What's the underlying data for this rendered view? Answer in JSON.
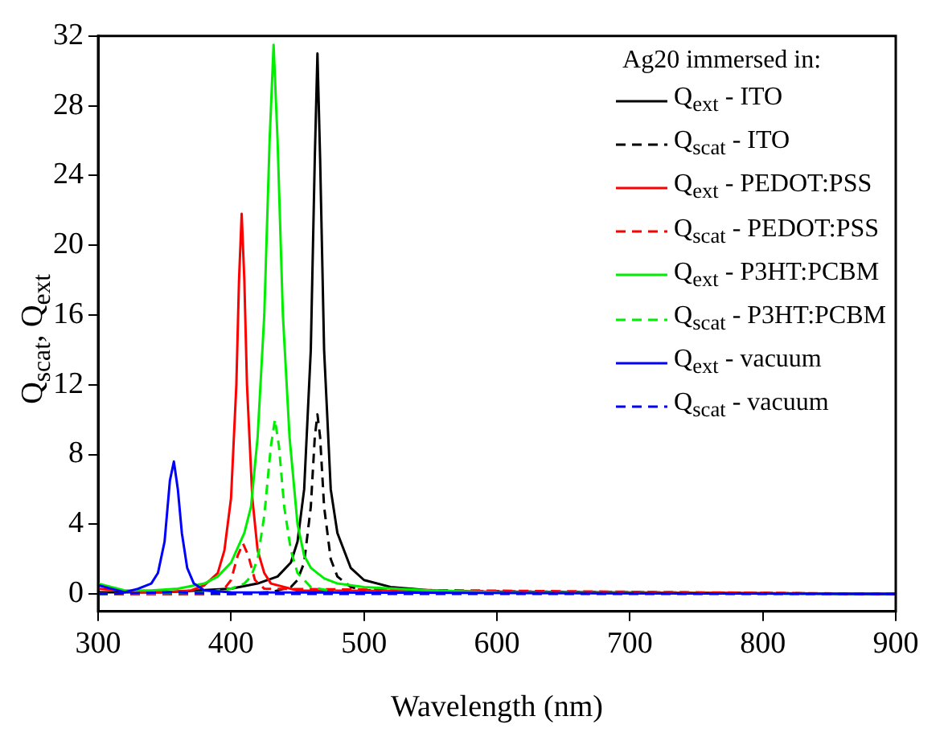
{
  "chart_data": {
    "type": "line",
    "xlabel": "Wavelength (nm)",
    "ylabel": "Q$_{scat}$, Q$_{ext}$",
    "legend_title": "Ag20 immersed in:",
    "legend": "top right",
    "grid": false,
    "marker": "none",
    "xlim": [
      300,
      900
    ],
    "xticks": [
      300,
      400,
      500,
      600,
      700,
      800,
      900
    ],
    "ylim": [
      -1,
      32
    ],
    "yticks": [
      0,
      4,
      8,
      12,
      16,
      20,
      24,
      28,
      32
    ],
    "series": [
      {
        "name": "Q$_{ext}$ - ITO",
        "color": "#000000",
        "line_style": "solid",
        "x": [
          300,
          350,
          400,
          420,
          435,
          445,
          450,
          455,
          460,
          463,
          465,
          467,
          470,
          475,
          480,
          490,
          500,
          520,
          550,
          600,
          900
        ],
        "values": [
          0.1,
          0.1,
          0.3,
          0.6,
          1.0,
          1.8,
          3,
          6,
          14,
          25,
          31,
          25,
          14,
          6,
          3.5,
          1.5,
          0.8,
          0.4,
          0.2,
          0.1,
          0
        ]
      },
      {
        "name": "Q$_{scat}$ - ITO",
        "color": "#000000",
        "line_style": "dashed",
        "x": [
          300,
          400,
          430,
          445,
          450,
          455,
          460,
          463,
          465,
          467,
          470,
          475,
          480,
          490,
          500,
          900
        ],
        "values": [
          0,
          0,
          0.1,
          0.4,
          0.8,
          1.8,
          5,
          9,
          10.3,
          9,
          5,
          2,
          1,
          0.4,
          0.2,
          0
        ]
      },
      {
        "name": "Q$_{ext}$ - PEDOT:PSS",
        "color": "#ff0000",
        "line_style": "solid",
        "x": [
          300,
          330,
          350,
          370,
          380,
          390,
          395,
          400,
          404,
          406,
          408,
          410,
          412,
          416,
          420,
          425,
          430,
          450,
          900
        ],
        "values": [
          0.3,
          0.1,
          0.1,
          0.2,
          0.5,
          1.2,
          2.5,
          5.5,
          12,
          18,
          21.8,
          18,
          12,
          5.5,
          2.5,
          1.2,
          0.6,
          0.2,
          0
        ]
      },
      {
        "name": "Q$_{scat}$ - PEDOT:PSS",
        "color": "#ff0000",
        "line_style": "dashed",
        "x": [
          300,
          380,
          395,
          400,
          405,
          409,
          413,
          418,
          425,
          900
        ],
        "values": [
          0,
          0,
          0.3,
          0.8,
          2.2,
          2.9,
          2.2,
          0.8,
          0.3,
          0
        ]
      },
      {
        "name": "Q$_{ext}$ - P3HT:PCBM",
        "color": "#00ee00",
        "line_style": "solid",
        "x": [
          300,
          320,
          340,
          360,
          380,
          390,
          400,
          410,
          415,
          420,
          425,
          429,
          432,
          435,
          439,
          444,
          450,
          455,
          460,
          470,
          480,
          500,
          550,
          600
        ],
        "values": [
          0.6,
          0.2,
          0.2,
          0.3,
          0.6,
          1.0,
          1.8,
          3.5,
          5,
          9,
          16,
          26,
          31.5,
          26,
          16,
          9,
          4,
          2.2,
          1.5,
          0.9,
          0.6,
          0.4,
          0.2,
          0.1
        ]
      },
      {
        "name": "Q$_{scat}$ - P3HT:PCBM",
        "color": "#00ee00",
        "line_style": "dashed",
        "x": [
          300,
          380,
          400,
          410,
          415,
          420,
          425,
          430,
          433,
          436,
          440,
          445,
          450,
          460,
          480,
          900
        ],
        "values": [
          0,
          0.1,
          0.3,
          0.6,
          1,
          2,
          4.5,
          8.5,
          10,
          8.5,
          5,
          2.5,
          1.2,
          0.4,
          0.1,
          0
        ]
      },
      {
        "name": "Q$_{ext}$ - vacuum",
        "color": "#0000ff",
        "line_style": "solid",
        "x": [
          300,
          310,
          320,
          330,
          340,
          345,
          350,
          354,
          357,
          360,
          363,
          367,
          372,
          380,
          400,
          900
        ],
        "values": [
          0.5,
          0.3,
          0.1,
          0.3,
          0.6,
          1.2,
          3,
          6.5,
          7.6,
          6,
          3.5,
          1.5,
          0.6,
          0.2,
          0.1,
          0
        ]
      },
      {
        "name": "Q$_{scat}$ - vacuum",
        "color": "#0000ff",
        "line_style": "dashed",
        "x": [
          300,
          357,
          400,
          900
        ],
        "values": [
          0,
          0.1,
          0,
          0
        ]
      }
    ]
  }
}
